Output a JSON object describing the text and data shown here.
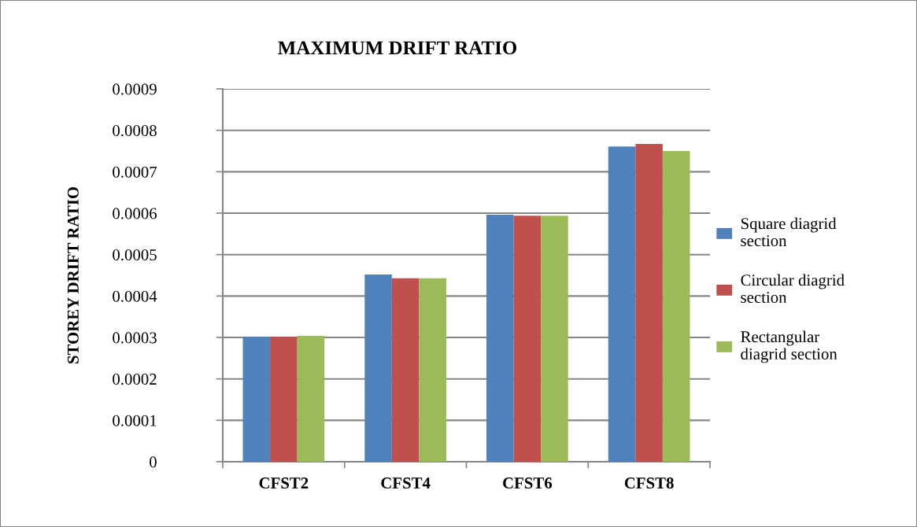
{
  "chart_data": {
    "type": "bar",
    "title": "MAXIMUM DRIFT RATIO",
    "ylabel": "STOREY DRIFT RATIO",
    "categories": [
      "CFST2",
      "CFST4",
      "CFST6",
      "CFST8"
    ],
    "series": [
      {
        "name": "Square diagrid\nsection",
        "color": "#4f81bd",
        "values": [
          0.000302,
          0.000452,
          0.000596,
          0.000761
        ]
      },
      {
        "name": "Circular diagrid\nsection",
        "color": "#c0504d",
        "values": [
          0.000302,
          0.000443,
          0.000594,
          0.000767
        ]
      },
      {
        "name": "Rectangular\ndiagrid section",
        "color": "#9bbb59",
        "values": [
          0.000304,
          0.000443,
          0.000594,
          0.00075
        ]
      }
    ],
    "ylim": [
      0,
      0.0009
    ],
    "yticks": [
      0,
      0.0001,
      0.0002,
      0.0003,
      0.0004,
      0.0005,
      0.0006,
      0.0007,
      0.0008,
      0.0009
    ],
    "grid": "y",
    "legend": "right"
  }
}
